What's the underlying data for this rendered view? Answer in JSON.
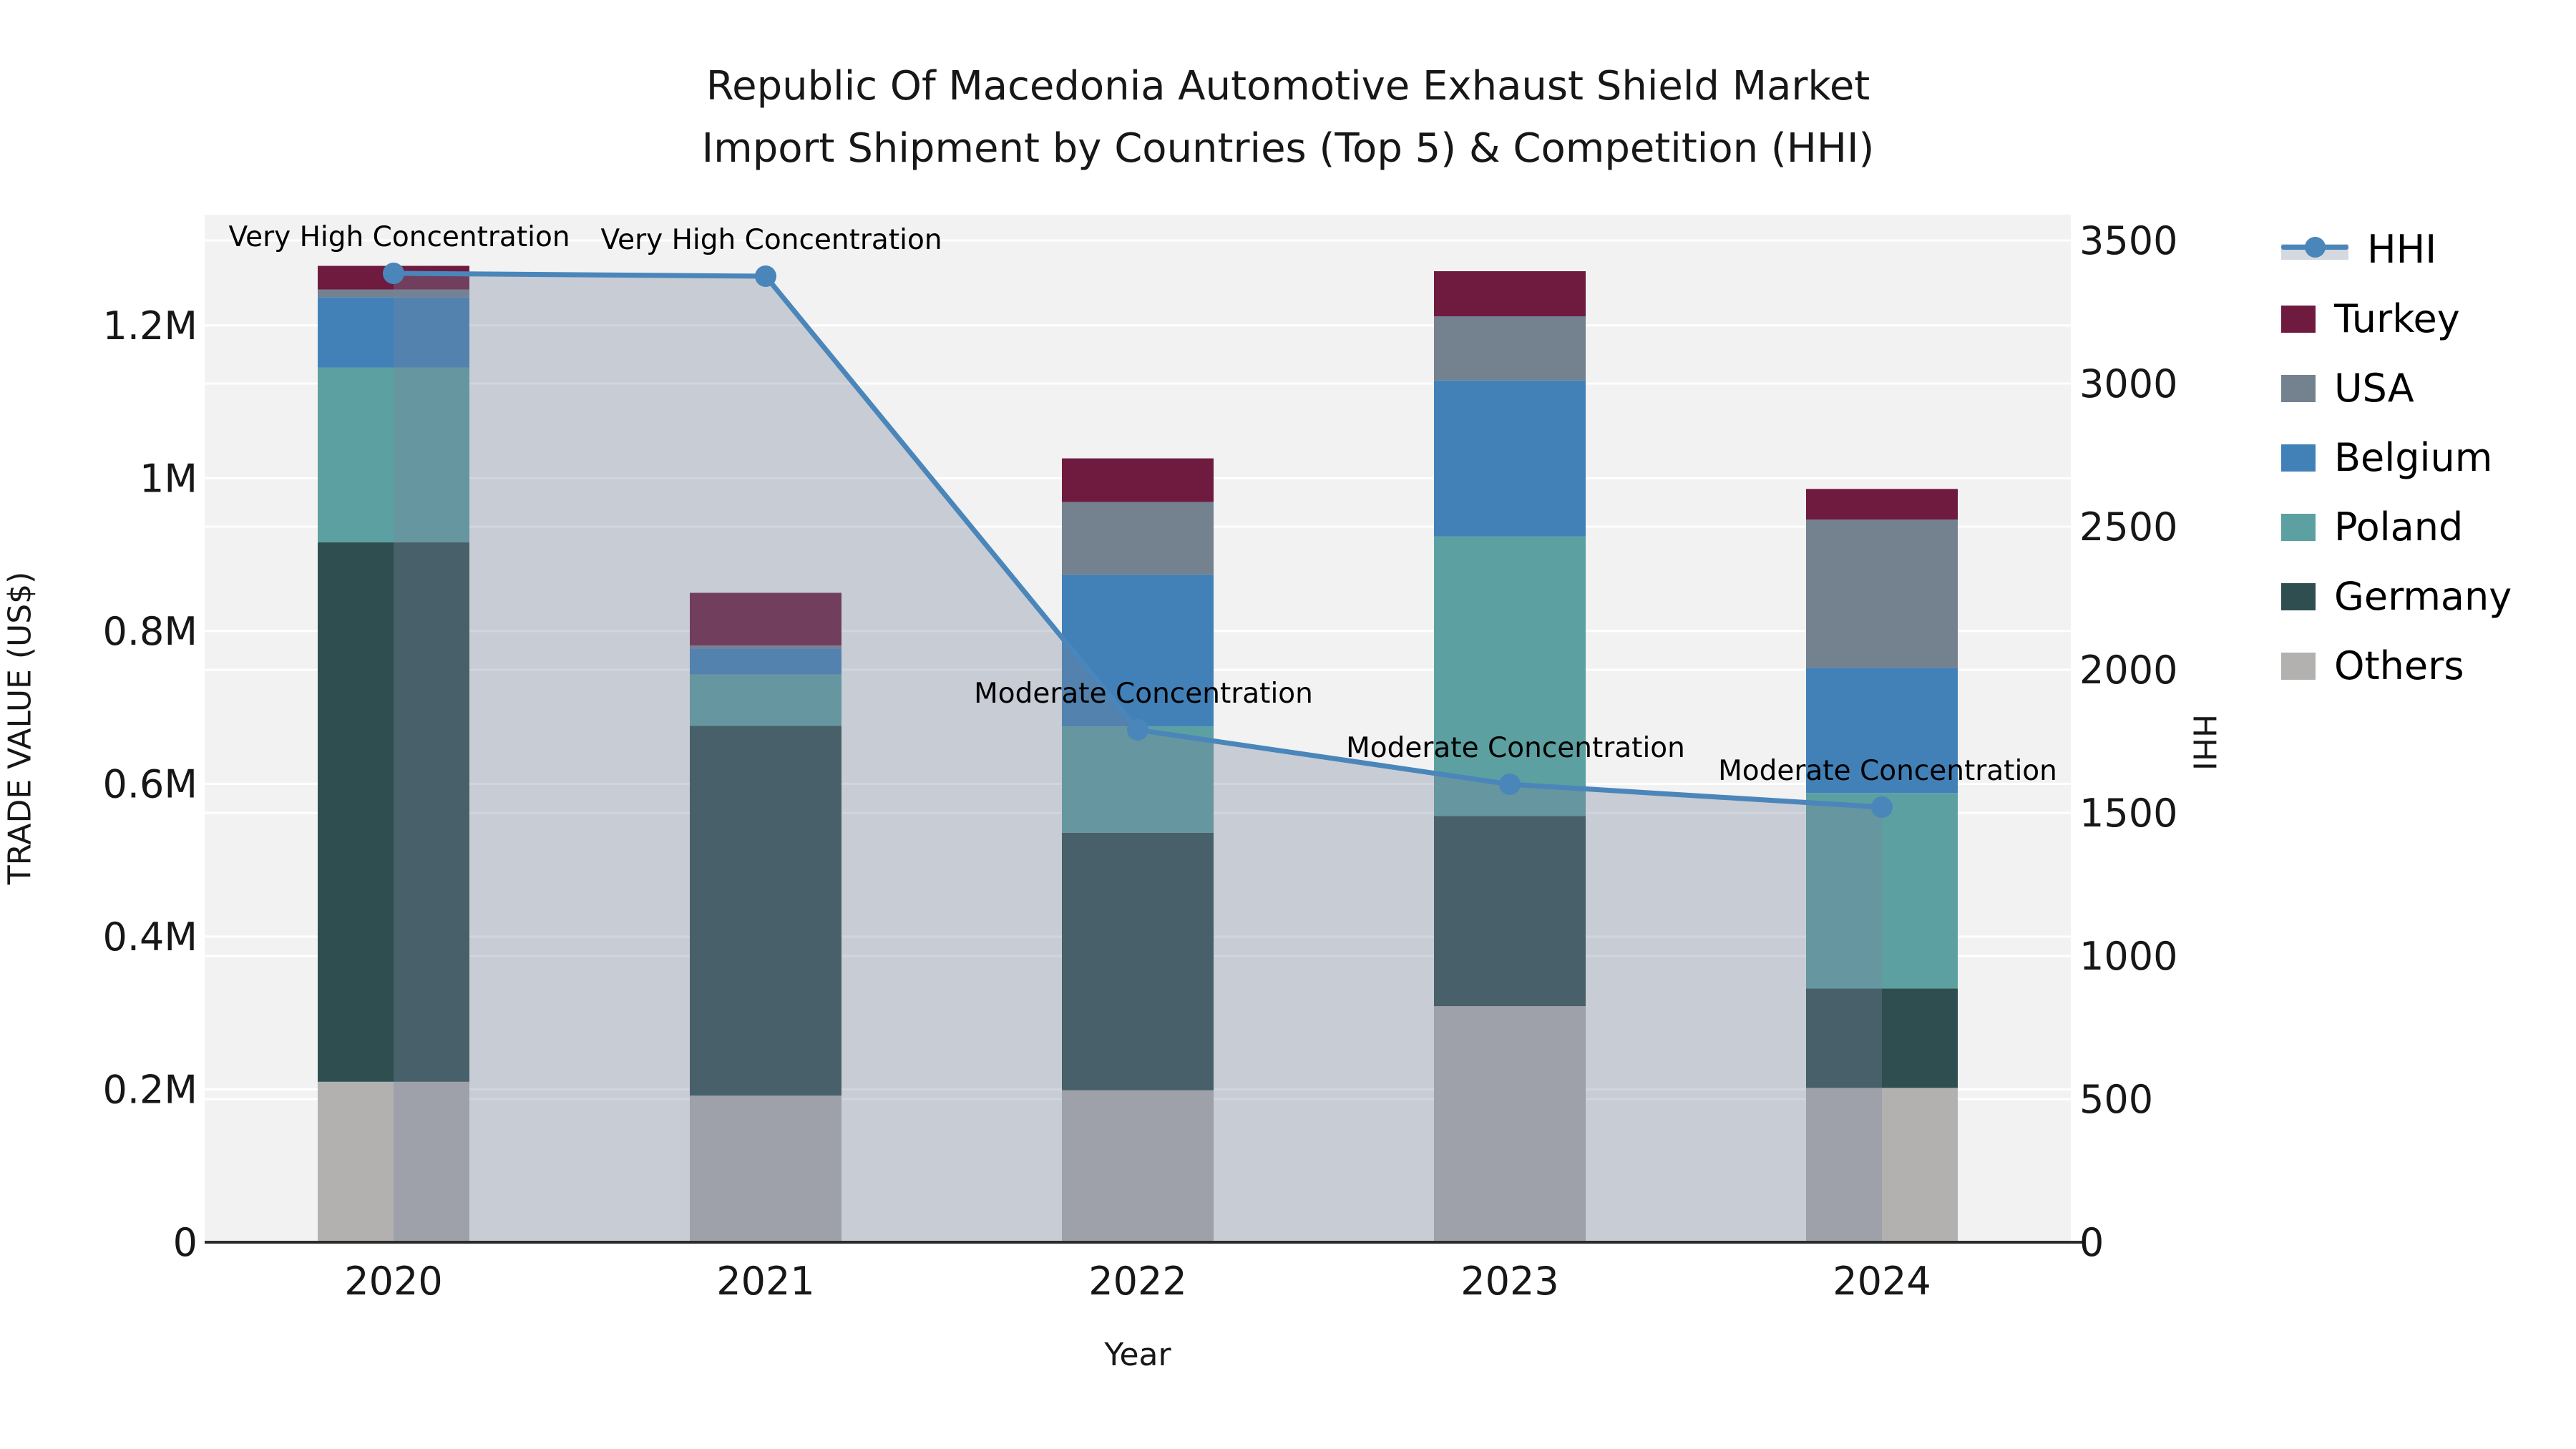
{
  "title": {
    "line1": "Republic Of Macedonia Automotive Exhaust Shield Market",
    "line2": "Import Shipment by Countries (Top 5) & Competition (HHI)"
  },
  "axes": {
    "x_label": "Year",
    "y_left_label": "TRADE VALUE (US$)",
    "y_right_label": "HHI",
    "y_left_ticks": [
      {
        "label": "0",
        "value": 0
      },
      {
        "label": "0.2M",
        "value": 200000
      },
      {
        "label": "0.4M",
        "value": 400000
      },
      {
        "label": "0.6M",
        "value": 600000
      },
      {
        "label": "0.8M",
        "value": 800000
      },
      {
        "label": "1M",
        "value": 1000000
      },
      {
        "label": "1.2M",
        "value": 1200000
      }
    ],
    "y_right_ticks": [
      {
        "label": "0",
        "value": 0
      },
      {
        "label": "500",
        "value": 500
      },
      {
        "label": "1000",
        "value": 1000
      },
      {
        "label": "1500",
        "value": 1500
      },
      {
        "label": "2000",
        "value": 2000
      },
      {
        "label": "2500",
        "value": 2500
      },
      {
        "label": "3000",
        "value": 3000
      },
      {
        "label": "3500",
        "value": 3500
      }
    ],
    "y_left_max_value": 1345000,
    "y_right_max_value": 3590,
    "grid": true
  },
  "chart_data": {
    "type": "bar+line",
    "categories": [
      "2020",
      "2021",
      "2022",
      "2023",
      "2024"
    ],
    "bar_series_bottom_to_top": [
      {
        "name": "Others",
        "color": "#b2b1b0",
        "values": [
          210000,
          192000,
          199000,
          309000,
          202000
        ]
      },
      {
        "name": "Germany",
        "color": "#2e4e50",
        "values": [
          706000,
          484000,
          337000,
          249000,
          130000
        ]
      },
      {
        "name": "Poland",
        "color": "#5da0a1",
        "values": [
          229000,
          67000,
          139000,
          366000,
          256000
        ]
      },
      {
        "name": "Belgium",
        "color": "#4281b8",
        "values": [
          92000,
          34000,
          199000,
          204000,
          164000
        ]
      },
      {
        "name": "USA",
        "color": "#74818f",
        "values": [
          10000,
          4000,
          95000,
          84000,
          194000
        ]
      },
      {
        "name": "Turkey",
        "color": "#6e1b3f",
        "values": [
          31000,
          69000,
          57000,
          59000,
          40000
        ]
      }
    ],
    "bar_totals": [
      1278000,
      850000,
      1026000,
      1271000,
      986000
    ],
    "line_series": {
      "name": "HHI",
      "color": "#4a86ba",
      "area_fill": "rgba(119,132,154,0.34)",
      "values": [
        3385,
        3375,
        1790,
        1600,
        1520
      ]
    },
    "annotations": [
      {
        "category": "2020",
        "text": "Very High Concentration"
      },
      {
        "category": "2021",
        "text": "Very High Concentration"
      },
      {
        "category": "2022",
        "text": "Moderate Concentration"
      },
      {
        "category": "2023",
        "text": "Moderate Concentration"
      },
      {
        "category": "2024",
        "text": "Moderate Concentration"
      }
    ]
  },
  "legend": {
    "items": [
      {
        "label": "HHI",
        "type": "line",
        "color": "#4a86ba"
      },
      {
        "label": "Turkey",
        "type": "patch",
        "color": "#6e1b3f"
      },
      {
        "label": "USA",
        "type": "patch",
        "color": "#74818f"
      },
      {
        "label": "Belgium",
        "type": "patch",
        "color": "#4281b8"
      },
      {
        "label": "Poland",
        "type": "patch",
        "color": "#5da0a1"
      },
      {
        "label": "Germany",
        "type": "patch",
        "color": "#2e4e50"
      },
      {
        "label": "Others",
        "type": "patch",
        "color": "#b2b1b0"
      }
    ]
  },
  "colors": {
    "plot_background": "#f2f2f2",
    "figure_background": "#ffffff",
    "gridline": "#ffffff",
    "axis_line": "#2b2b2b",
    "text": "#171717"
  }
}
